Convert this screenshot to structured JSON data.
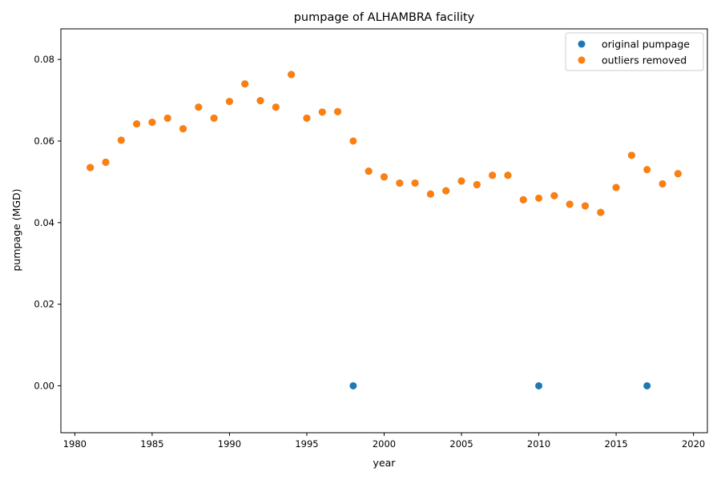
{
  "chart_data": {
    "type": "scatter",
    "title": "pumpage of ALHAMBRA facility",
    "xlabel": "year",
    "ylabel": "pumpage (MGD)",
    "xlim": [
      1979.1,
      2020.9
    ],
    "ylim": [
      -0.0115,
      0.0875
    ],
    "xticks": [
      1980,
      1985,
      1990,
      1995,
      2000,
      2005,
      2010,
      2015,
      2020
    ],
    "yticks": [
      0.0,
      0.02,
      0.04,
      0.06,
      0.08
    ],
    "xtick_labels": [
      "1980",
      "1985",
      "1990",
      "1995",
      "2000",
      "2005",
      "2010",
      "2015",
      "2020"
    ],
    "ytick_labels": [
      "0.00",
      "0.02",
      "0.04",
      "0.06",
      "0.08"
    ],
    "legend_position": "top-right",
    "grid": false,
    "series": [
      {
        "name": "original pumpage",
        "color": "#1f77b4",
        "x": [
          1981,
          1982,
          1983,
          1984,
          1985,
          1986,
          1987,
          1988,
          1989,
          1990,
          1991,
          1992,
          1993,
          1994,
          1995,
          1996,
          1997,
          1998,
          1999,
          2000,
          2001,
          2002,
          2003,
          2004,
          2005,
          2006,
          2007,
          2008,
          2009,
          2010,
          2011,
          2012,
          2013,
          2014,
          2015,
          2016,
          2017,
          2018,
          2019
        ],
        "y": [
          0.0535,
          0.0548,
          0.0602,
          0.0642,
          0.0646,
          0.0656,
          0.063,
          0.0683,
          0.0656,
          0.0697,
          0.074,
          0.0699,
          0.0683,
          0.0763,
          0.0656,
          0.0671,
          0.0672,
          0.0,
          0.0526,
          0.0512,
          0.0497,
          0.0497,
          0.047,
          0.0478,
          0.0502,
          0.0493,
          0.0516,
          0.0516,
          0.0456,
          0.0,
          0.0466,
          0.0445,
          0.0441,
          0.0425,
          0.0486,
          0.0565,
          0.0,
          0.0495,
          0.052
        ]
      },
      {
        "name": "outliers removed",
        "color": "#ff7f0e",
        "x": [
          1981,
          1982,
          1983,
          1984,
          1985,
          1986,
          1987,
          1988,
          1989,
          1990,
          1991,
          1992,
          1993,
          1994,
          1995,
          1996,
          1997,
          1998,
          1999,
          2000,
          2001,
          2002,
          2003,
          2004,
          2005,
          2006,
          2007,
          2008,
          2009,
          2010,
          2011,
          2012,
          2013,
          2014,
          2015,
          2016,
          2017,
          2018,
          2019
        ],
        "y": [
          0.0535,
          0.0548,
          0.0602,
          0.0642,
          0.0646,
          0.0656,
          0.063,
          0.0683,
          0.0656,
          0.0697,
          0.074,
          0.0699,
          0.0683,
          0.0763,
          0.0656,
          0.0671,
          0.0672,
          0.06,
          0.0526,
          0.0512,
          0.0497,
          0.0497,
          0.047,
          0.0478,
          0.0502,
          0.0493,
          0.0516,
          0.0516,
          0.0456,
          0.046,
          0.0466,
          0.0445,
          0.0441,
          0.0425,
          0.0486,
          0.0565,
          0.053,
          0.0495,
          0.052
        ]
      }
    ]
  }
}
